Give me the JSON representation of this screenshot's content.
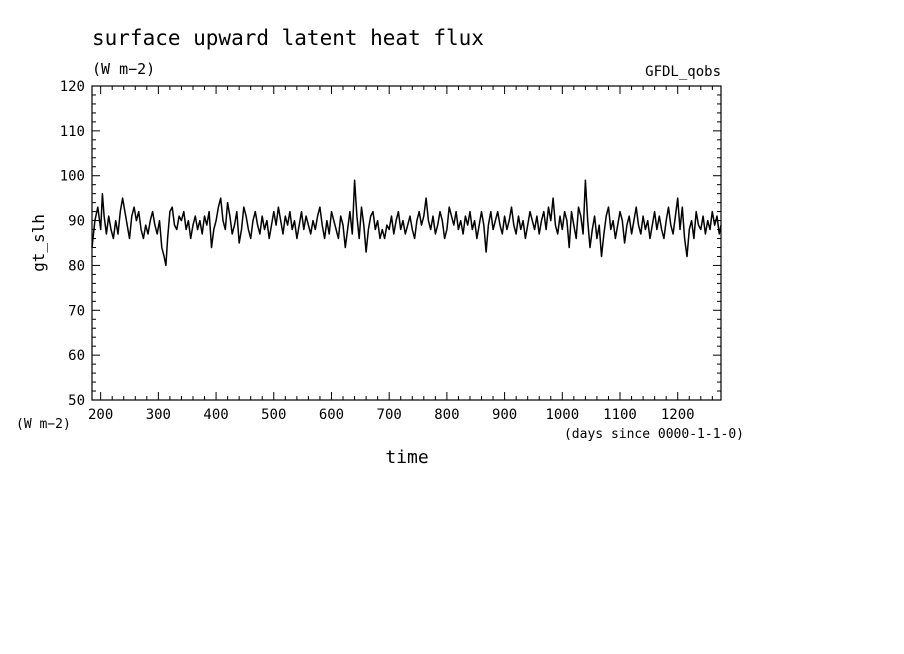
{
  "chart_data": {
    "type": "line",
    "title": "surface upward latent heat flux",
    "subtitle": "(W m−2)",
    "source_label": "GFDL_qobs",
    "ylabel": "gt_slh",
    "yunit": "(W m−2)",
    "xlabel": "time",
    "xunit": "(days since 0000-1-1-0)",
    "xlim": [
      185,
      1275
    ],
    "ylim": [
      50,
      120
    ],
    "xticks": [
      200,
      300,
      400,
      500,
      600,
      700,
      800,
      900,
      1000,
      1100,
      1200
    ],
    "yticks": [
      50,
      60,
      70,
      80,
      90,
      100,
      110,
      120
    ],
    "grid": false,
    "series": [
      {
        "color": "#000000",
        "points": [
          [
            185,
            84
          ],
          [
            190,
            90
          ],
          [
            195,
            93
          ],
          [
            200,
            88
          ],
          [
            203,
            96
          ],
          [
            206,
            91
          ],
          [
            210,
            87
          ],
          [
            214,
            91
          ],
          [
            218,
            88
          ],
          [
            222,
            86
          ],
          [
            226,
            90
          ],
          [
            230,
            87
          ],
          [
            234,
            92
          ],
          [
            238,
            95
          ],
          [
            242,
            92
          ],
          [
            246,
            89
          ],
          [
            250,
            86
          ],
          [
            254,
            91
          ],
          [
            258,
            93
          ],
          [
            262,
            90
          ],
          [
            266,
            92
          ],
          [
            270,
            88
          ],
          [
            274,
            86
          ],
          [
            278,
            89
          ],
          [
            282,
            87
          ],
          [
            286,
            90
          ],
          [
            290,
            92
          ],
          [
            294,
            89
          ],
          [
            298,
            87
          ],
          [
            302,
            90
          ],
          [
            306,
            84
          ],
          [
            310,
            82
          ],
          [
            313,
            80
          ],
          [
            316,
            86
          ],
          [
            320,
            92
          ],
          [
            324,
            93
          ],
          [
            328,
            89
          ],
          [
            332,
            88
          ],
          [
            336,
            91
          ],
          [
            340,
            90
          ],
          [
            344,
            92
          ],
          [
            348,
            88
          ],
          [
            352,
            90
          ],
          [
            356,
            86
          ],
          [
            360,
            89
          ],
          [
            364,
            91
          ],
          [
            368,
            88
          ],
          [
            372,
            90
          ],
          [
            376,
            87
          ],
          [
            380,
            91
          ],
          [
            384,
            89
          ],
          [
            388,
            92
          ],
          [
            392,
            84
          ],
          [
            396,
            88
          ],
          [
            400,
            90
          ],
          [
            404,
            93
          ],
          [
            408,
            95
          ],
          [
            412,
            90
          ],
          [
            416,
            88
          ],
          [
            420,
            94
          ],
          [
            424,
            91
          ],
          [
            428,
            87
          ],
          [
            432,
            89
          ],
          [
            436,
            92
          ],
          [
            440,
            85
          ],
          [
            444,
            88
          ],
          [
            448,
            93
          ],
          [
            452,
            91
          ],
          [
            456,
            88
          ],
          [
            460,
            86
          ],
          [
            464,
            90
          ],
          [
            468,
            92
          ],
          [
            472,
            89
          ],
          [
            476,
            87
          ],
          [
            480,
            91
          ],
          [
            484,
            88
          ],
          [
            488,
            90
          ],
          [
            492,
            86
          ],
          [
            496,
            89
          ],
          [
            500,
            92
          ],
          [
            504,
            89
          ],
          [
            508,
            93
          ],
          [
            512,
            90
          ],
          [
            516,
            87
          ],
          [
            520,
            91
          ],
          [
            524,
            89
          ],
          [
            528,
            92
          ],
          [
            532,
            88
          ],
          [
            536,
            90
          ],
          [
            540,
            86
          ],
          [
            544,
            89
          ],
          [
            548,
            92
          ],
          [
            552,
            88
          ],
          [
            556,
            91
          ],
          [
            560,
            89
          ],
          [
            564,
            87
          ],
          [
            568,
            90
          ],
          [
            572,
            88
          ],
          [
            576,
            91
          ],
          [
            580,
            93
          ],
          [
            584,
            89
          ],
          [
            588,
            86
          ],
          [
            592,
            90
          ],
          [
            596,
            87
          ],
          [
            600,
            92
          ],
          [
            604,
            90
          ],
          [
            608,
            88
          ],
          [
            612,
            86
          ],
          [
            616,
            91
          ],
          [
            620,
            89
          ],
          [
            624,
            84
          ],
          [
            628,
            88
          ],
          [
            632,
            92
          ],
          [
            636,
            87
          ],
          [
            640,
            99
          ],
          [
            644,
            91
          ],
          [
            648,
            86
          ],
          [
            652,
            93
          ],
          [
            656,
            89
          ],
          [
            660,
            83
          ],
          [
            664,
            88
          ],
          [
            668,
            91
          ],
          [
            672,
            92
          ],
          [
            676,
            88
          ],
          [
            680,
            90
          ],
          [
            684,
            86
          ],
          [
            688,
            88
          ],
          [
            692,
            86
          ],
          [
            696,
            89
          ],
          [
            700,
            88
          ],
          [
            704,
            91
          ],
          [
            708,
            87
          ],
          [
            712,
            90
          ],
          [
            716,
            92
          ],
          [
            720,
            88
          ],
          [
            724,
            90
          ],
          [
            728,
            87
          ],
          [
            732,
            89
          ],
          [
            736,
            91
          ],
          [
            740,
            88
          ],
          [
            744,
            86
          ],
          [
            748,
            90
          ],
          [
            752,
            92
          ],
          [
            756,
            89
          ],
          [
            760,
            91
          ],
          [
            764,
            95
          ],
          [
            768,
            90
          ],
          [
            772,
            88
          ],
          [
            776,
            91
          ],
          [
            780,
            87
          ],
          [
            784,
            89
          ],
          [
            788,
            92
          ],
          [
            792,
            90
          ],
          [
            796,
            86
          ],
          [
            800,
            88
          ],
          [
            804,
            93
          ],
          [
            808,
            91
          ],
          [
            812,
            89
          ],
          [
            816,
            92
          ],
          [
            820,
            88
          ],
          [
            824,
            90
          ],
          [
            828,
            87
          ],
          [
            832,
            91
          ],
          [
            836,
            89
          ],
          [
            840,
            92
          ],
          [
            844,
            88
          ],
          [
            848,
            90
          ],
          [
            852,
            86
          ],
          [
            856,
            89
          ],
          [
            860,
            92
          ],
          [
            864,
            89
          ],
          [
            868,
            83
          ],
          [
            872,
            89
          ],
          [
            876,
            92
          ],
          [
            880,
            88
          ],
          [
            884,
            90
          ],
          [
            888,
            92
          ],
          [
            892,
            89
          ],
          [
            896,
            87
          ],
          [
            900,
            91
          ],
          [
            904,
            88
          ],
          [
            908,
            90
          ],
          [
            912,
            93
          ],
          [
            916,
            89
          ],
          [
            920,
            87
          ],
          [
            924,
            91
          ],
          [
            928,
            88
          ],
          [
            932,
            90
          ],
          [
            936,
            86
          ],
          [
            940,
            89
          ],
          [
            944,
            92
          ],
          [
            948,
            90
          ],
          [
            952,
            88
          ],
          [
            956,
            91
          ],
          [
            960,
            87
          ],
          [
            964,
            90
          ],
          [
            968,
            92
          ],
          [
            972,
            88
          ],
          [
            976,
            93
          ],
          [
            980,
            90
          ],
          [
            984,
            95
          ],
          [
            988,
            89
          ],
          [
            992,
            87
          ],
          [
            996,
            91
          ],
          [
            1000,
            88
          ],
          [
            1004,
            92
          ],
          [
            1008,
            90
          ],
          [
            1012,
            84
          ],
          [
            1016,
            92
          ],
          [
            1020,
            89
          ],
          [
            1024,
            86
          ],
          [
            1028,
            93
          ],
          [
            1032,
            91
          ],
          [
            1036,
            87
          ],
          [
            1040,
            99
          ],
          [
            1044,
            90
          ],
          [
            1048,
            84
          ],
          [
            1052,
            88
          ],
          [
            1056,
            91
          ],
          [
            1060,
            86
          ],
          [
            1064,
            89
          ],
          [
            1068,
            82
          ],
          [
            1072,
            87
          ],
          [
            1076,
            91
          ],
          [
            1080,
            93
          ],
          [
            1084,
            88
          ],
          [
            1088,
            90
          ],
          [
            1092,
            86
          ],
          [
            1096,
            89
          ],
          [
            1100,
            92
          ],
          [
            1104,
            90
          ],
          [
            1108,
            85
          ],
          [
            1112,
            89
          ],
          [
            1116,
            91
          ],
          [
            1120,
            87
          ],
          [
            1124,
            90
          ],
          [
            1128,
            93
          ],
          [
            1132,
            89
          ],
          [
            1136,
            87
          ],
          [
            1140,
            91
          ],
          [
            1144,
            88
          ],
          [
            1148,
            90
          ],
          [
            1152,
            86
          ],
          [
            1156,
            89
          ],
          [
            1160,
            92
          ],
          [
            1164,
            88
          ],
          [
            1168,
            91
          ],
          [
            1172,
            88
          ],
          [
            1176,
            86
          ],
          [
            1180,
            90
          ],
          [
            1184,
            93
          ],
          [
            1188,
            89
          ],
          [
            1192,
            87
          ],
          [
            1196,
            91
          ],
          [
            1200,
            95
          ],
          [
            1204,
            88
          ],
          [
            1208,
            93
          ],
          [
            1212,
            86
          ],
          [
            1216,
            82
          ],
          [
            1220,
            88
          ],
          [
            1224,
            90
          ],
          [
            1228,
            86
          ],
          [
            1232,
            92
          ],
          [
            1236,
            89
          ],
          [
            1240,
            88
          ],
          [
            1244,
            91
          ],
          [
            1248,
            87
          ],
          [
            1252,
            90
          ],
          [
            1256,
            88
          ],
          [
            1260,
            92
          ],
          [
            1264,
            89
          ],
          [
            1268,
            91
          ],
          [
            1272,
            87
          ],
          [
            1275,
            89
          ]
        ]
      }
    ]
  }
}
